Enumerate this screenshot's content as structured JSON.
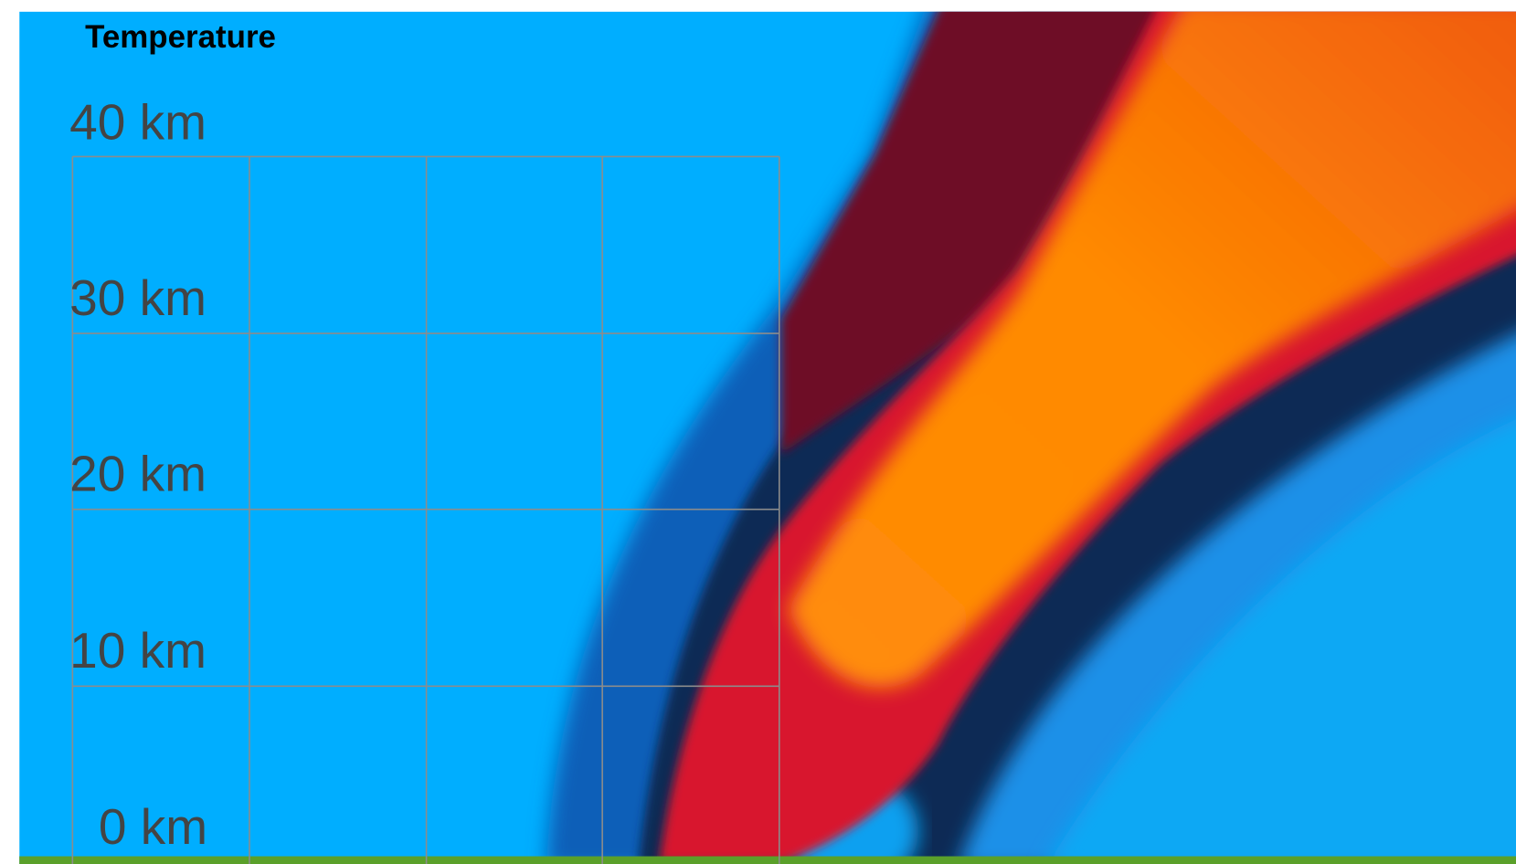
{
  "title": "Temperature",
  "altitude_labels": [
    "40 km",
    "30 km",
    "20 km",
    "10 km",
    "0 km"
  ]
}
